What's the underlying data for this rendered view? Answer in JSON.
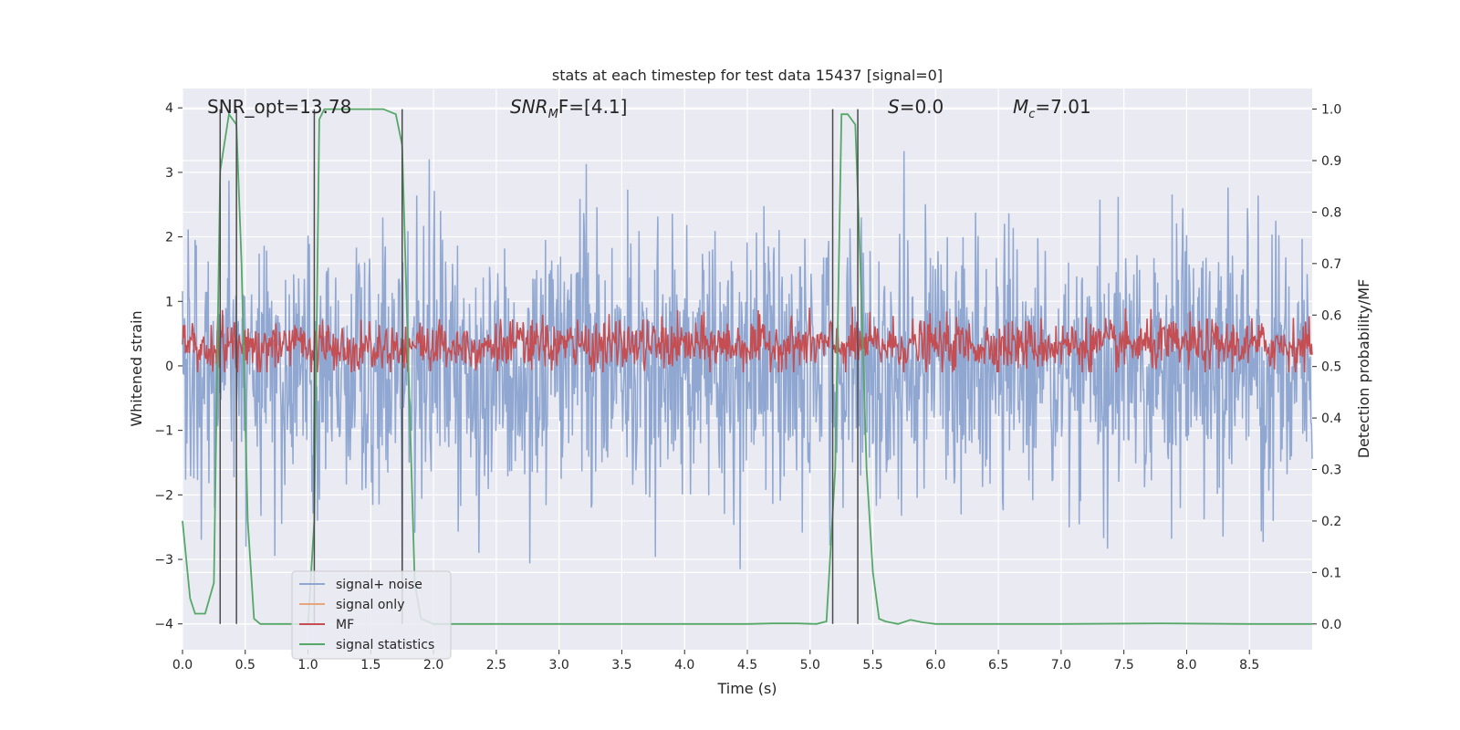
{
  "chart_data": {
    "type": "line",
    "title": "stats at each timestep for test data 15437 [signal=0]",
    "xlabel": "Time (s)",
    "ylabel": "Whitened strain",
    "ylabel_right": "Detection probability/MF",
    "xlim": [
      0.0,
      9.0
    ],
    "ylim": [
      -4.4,
      4.3
    ],
    "ylim_right": [
      -0.05,
      1.04
    ],
    "x_ticks": [
      0.0,
      0.5,
      1.0,
      1.5,
      2.0,
      2.5,
      3.0,
      3.5,
      4.0,
      4.5,
      5.0,
      5.5,
      6.0,
      6.5,
      7.0,
      7.5,
      8.0,
      8.5
    ],
    "x_tick_labels": [
      "0.0",
      "0.5",
      "1.0",
      "1.5",
      "2.0",
      "2.5",
      "3.0",
      "3.5",
      "4.0",
      "4.5",
      "5.0",
      "5.5",
      "6.0",
      "6.5",
      "7.0",
      "7.5",
      "8.0",
      "8.5"
    ],
    "y_ticks": [
      -4,
      -3,
      -2,
      -1,
      0,
      1,
      2,
      3,
      4
    ],
    "y_tick_labels": [
      "−4",
      "−3",
      "−2",
      "−1",
      "0",
      "1",
      "2",
      "3",
      "4"
    ],
    "y_right_ticks": [
      0.0,
      0.1,
      0.2,
      0.3,
      0.4,
      0.5,
      0.6,
      0.7,
      0.8,
      0.9,
      1.0
    ],
    "y_right_tick_labels": [
      "0.0",
      "0.1",
      "0.2",
      "0.3",
      "0.4",
      "0.5",
      "0.6",
      "0.7",
      "0.8",
      "0.9",
      "1.0"
    ],
    "grid": true,
    "legend": {
      "placement": "lower-left",
      "entries": [
        {
          "label": "signal+ noise",
          "color": "#8fa7d1"
        },
        {
          "label": "signal only",
          "color": "#e8a47d"
        },
        {
          "label": "MF",
          "color": "#c44e52"
        },
        {
          "label": "signal statistics",
          "color": "#55a868"
        }
      ]
    },
    "annotations": {
      "snr_opt": "SNR_opt=13.78",
      "snr_mf_name": "SNR",
      "snr_mf_sub": "M",
      "snr_mf_rest": "F=[4.1]",
      "s_name": "S",
      "s_rest": "=0.0",
      "mc_name": "M",
      "mc_sub": "c",
      "mc_rest": "=7.01"
    },
    "colors": {
      "background": "#eaeaf2",
      "grid": "#ffffff",
      "signal_noise": "#8fa7d1",
      "signal_only": "#e8a47d",
      "mf": "#c44e52",
      "signal_statistics": "#55a868",
      "vlines": "#4a4a4a"
    },
    "series": [
      {
        "name": "signal+ noise",
        "axis": "left",
        "description": "dense whitened strain noise, approx. within [-4.0, 3.9]",
        "x_range": [
          0.0,
          9.0
        ],
        "envelope": [
          -4.0,
          3.9
        ]
      },
      {
        "name": "MF",
        "axis": "left",
        "description": "matched filter output, fluctuates roughly between 0.0 and 1.0",
        "x_range": [
          0.0,
          9.0
        ],
        "envelope": [
          -0.1,
          1.0
        ]
      },
      {
        "name": "signal statistics",
        "axis": "right",
        "x": [
          0.0,
          0.06,
          0.1,
          0.18,
          0.25,
          0.3,
          0.37,
          0.43,
          0.47,
          0.52,
          0.57,
          0.62,
          0.8,
          1.0,
          1.05,
          1.09,
          1.13,
          1.2,
          1.4,
          1.6,
          1.7,
          1.75,
          1.8,
          1.85,
          1.9,
          2.0,
          3.0,
          4.0,
          4.5,
          4.7,
          4.9,
          5.05,
          5.13,
          5.2,
          5.25,
          5.3,
          5.36,
          5.4,
          5.45,
          5.5,
          5.55,
          5.6,
          5.7,
          5.8,
          5.9,
          6.0,
          7.0,
          7.8,
          8.5,
          9.0
        ],
        "y": [
          0.2,
          0.05,
          0.02,
          0.02,
          0.08,
          0.88,
          0.99,
          0.97,
          0.7,
          0.2,
          0.01,
          0.0,
          0.0,
          0.0,
          0.2,
          0.98,
          1.0,
          1.0,
          1.0,
          1.0,
          0.99,
          0.93,
          0.5,
          0.08,
          0.01,
          0.0,
          0.0,
          0.0,
          0.0,
          0.001,
          0.001,
          0.0,
          0.005,
          0.3,
          0.99,
          0.99,
          0.97,
          0.7,
          0.3,
          0.1,
          0.01,
          0.005,
          0.0,
          0.008,
          0.003,
          0.0,
          0.0,
          0.001,
          0.0,
          0.0
        ]
      }
    ],
    "vertical_lines_x": [
      0.3,
      0.43,
      1.05,
      1.75,
      5.18,
      5.38
    ]
  }
}
